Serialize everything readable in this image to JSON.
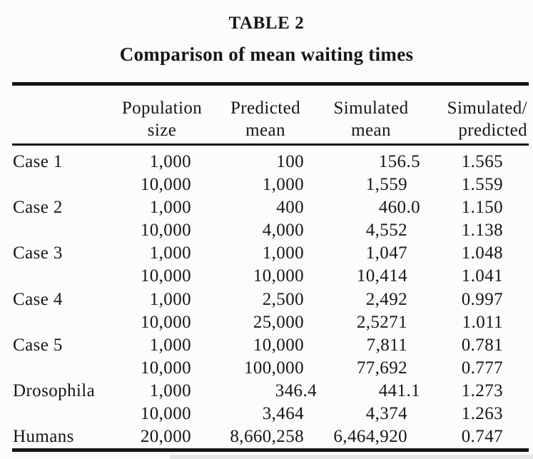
{
  "table": {
    "title": "TABLE 2",
    "subtitle": "Comparison of mean waiting times",
    "headers": [
      {
        "line1": "Population",
        "line2": "size"
      },
      {
        "line1": "Predicted",
        "line2": "mean"
      },
      {
        "line1": "Simulated",
        "line2": "mean"
      },
      {
        "line1": "Simulated/",
        "line2": "predicted"
      }
    ],
    "rows": [
      {
        "label": "Case 1",
        "population_size": "1,000",
        "predicted_mean": "100",
        "simulated_mean": "156.5",
        "ratio": "1.565"
      },
      {
        "label": "",
        "population_size": "10,000",
        "predicted_mean": "1,000",
        "simulated_mean": "1,559",
        "ratio": "1.559"
      },
      {
        "label": "Case 2",
        "population_size": "1,000",
        "predicted_mean": "400",
        "simulated_mean": "460.0",
        "ratio": "1.150"
      },
      {
        "label": "",
        "population_size": "10,000",
        "predicted_mean": "4,000",
        "simulated_mean": "4,552",
        "ratio": "1.138"
      },
      {
        "label": "Case 3",
        "population_size": "1,000",
        "predicted_mean": "1,000",
        "simulated_mean": "1,047",
        "ratio": "1.048"
      },
      {
        "label": "",
        "population_size": "10,000",
        "predicted_mean": "10,000",
        "simulated_mean": "10,414",
        "ratio": "1.041"
      },
      {
        "label": "Case 4",
        "population_size": "1,000",
        "predicted_mean": "2,500",
        "simulated_mean": "2,492",
        "ratio": "0.997"
      },
      {
        "label": "",
        "population_size": "10,000",
        "predicted_mean": "25,000",
        "simulated_mean": "2,5271",
        "ratio": "1.011"
      },
      {
        "label": "Case 5",
        "population_size": "1,000",
        "predicted_mean": "10,000",
        "simulated_mean": "7,811",
        "ratio": "0.781"
      },
      {
        "label": "",
        "population_size": "10,000",
        "predicted_mean": "100,000",
        "simulated_mean": "77,692",
        "ratio": "0.777"
      },
      {
        "label": "Drosophila",
        "population_size": "1,000",
        "predicted_mean": "346.4",
        "simulated_mean": "441.1",
        "ratio": "1.273"
      },
      {
        "label": "",
        "population_size": "10,000",
        "predicted_mean": "3,464",
        "simulated_mean": "4,374",
        "ratio": "1.263"
      },
      {
        "label": "Humans",
        "population_size": "20,000",
        "predicted_mean": "8,660,258",
        "simulated_mean": "6,464,920",
        "ratio": "0.747"
      }
    ],
    "ink_color": "#151515",
    "paper_color": "#fcfcfc"
  }
}
